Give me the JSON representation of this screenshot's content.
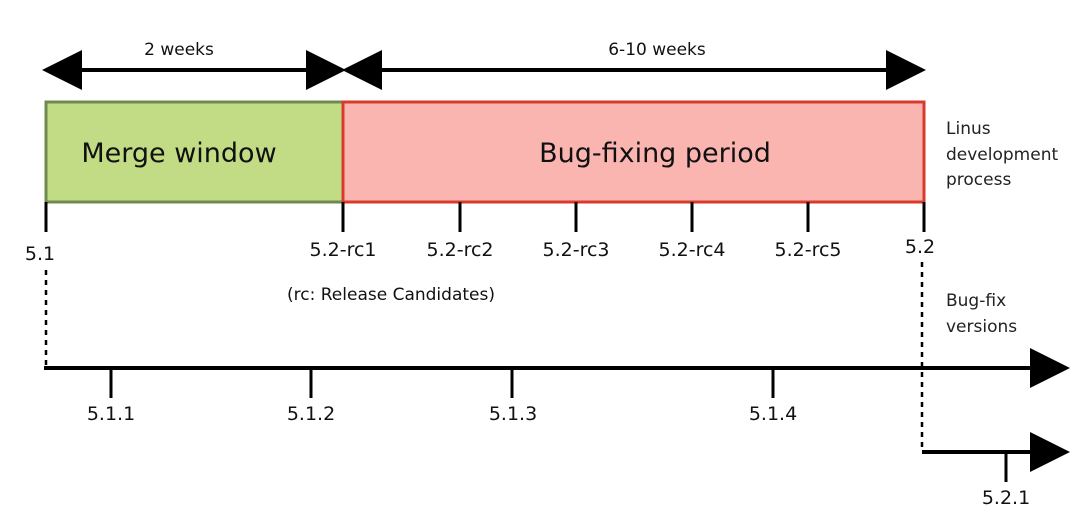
{
  "durations": {
    "merge": "2 weeks",
    "bugfix": "6-10 weeks"
  },
  "phases": {
    "merge": "Merge window",
    "bugfix": "Bug-fixing period"
  },
  "side_labels": {
    "linus": [
      "Linus",
      "development",
      "process"
    ],
    "bugfix_versions": [
      "Bug-fix",
      "versions"
    ]
  },
  "main_versions": {
    "start": "5.1",
    "rcs": [
      "5.2-rc1",
      "5.2-rc2",
      "5.2-rc3",
      "5.2-rc4",
      "5.2-rc5"
    ],
    "release": "5.2"
  },
  "rc_note": "(rc: Release Candidates)",
  "stable_51": [
    "5.1.1",
    "5.1.2",
    "5.1.3",
    "5.1.4"
  ],
  "stable_52": [
    "5.2.1"
  ],
  "colors": {
    "merge_fill": "#c2dc85",
    "merge_border": "#6f8a4e",
    "bugfix_fill": "#fbb5b0",
    "bugfix_border": "#d93a2e",
    "line": "#000000"
  }
}
